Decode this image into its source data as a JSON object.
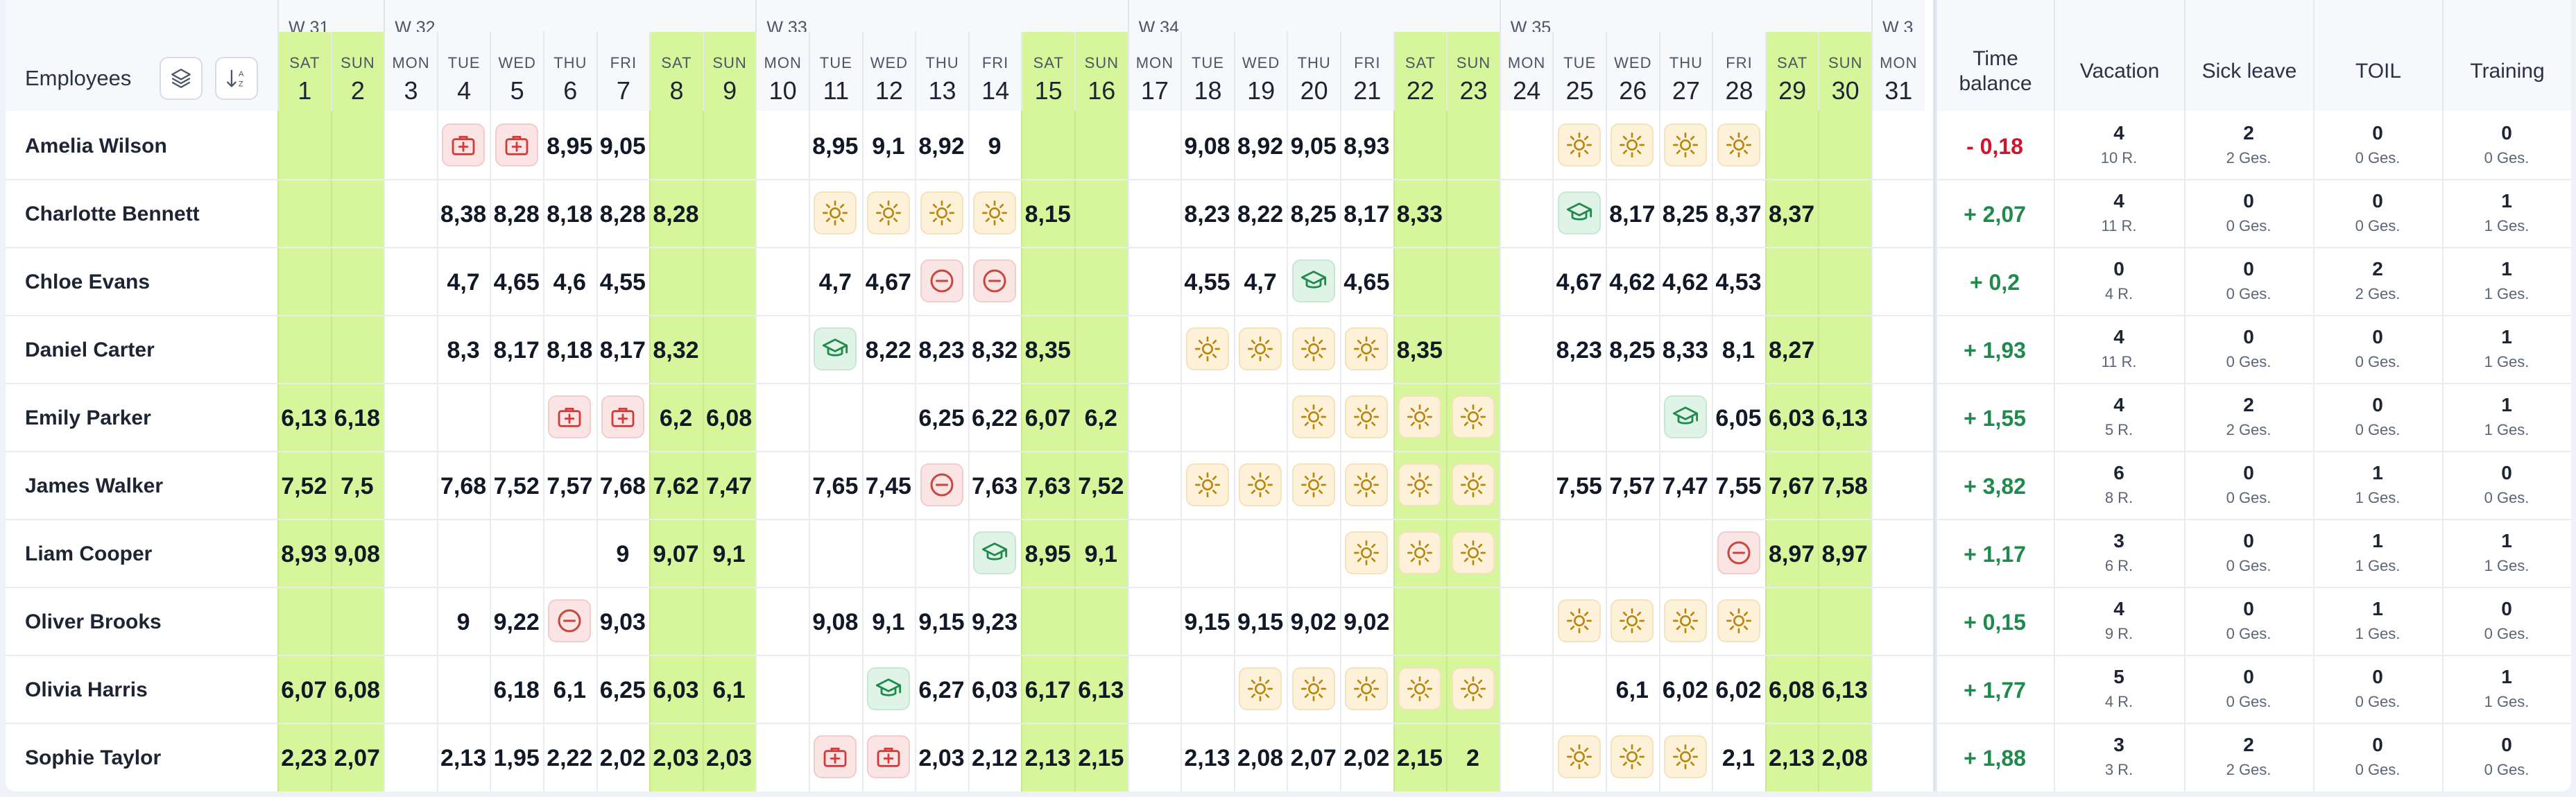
{
  "colors": {
    "weekend": "#d7f59a",
    "vacation": "#b8860b",
    "sick": "#d33b3b",
    "toil": "#c8463c",
    "training": "#1f8a4c",
    "positive": "#1f8a4c",
    "negative": "#d0142c"
  },
  "header": {
    "employees_label": "Employees",
    "layers_button": "layers-icon",
    "sort_button": "sort-icon",
    "weeks": [
      "W 31",
      "W 32",
      "W 33",
      "W 34",
      "W 35",
      "W 3"
    ],
    "time_balance": "Time balance",
    "vacation": "Vacation",
    "sick_leave": "Sick leave",
    "toil": "TOIL",
    "training": "Training"
  },
  "days": [
    {
      "dn": "SAT",
      "dd": "1",
      "we": true
    },
    {
      "dn": "SUN",
      "dd": "2",
      "we": true
    },
    {
      "dn": "MON",
      "dd": "3",
      "we": false
    },
    {
      "dn": "TUE",
      "dd": "4",
      "we": false
    },
    {
      "dn": "WED",
      "dd": "5",
      "we": false
    },
    {
      "dn": "THU",
      "dd": "6",
      "we": false
    },
    {
      "dn": "FRI",
      "dd": "7",
      "we": false
    },
    {
      "dn": "SAT",
      "dd": "8",
      "we": true
    },
    {
      "dn": "SUN",
      "dd": "9",
      "we": true
    },
    {
      "dn": "MON",
      "dd": "10",
      "we": false
    },
    {
      "dn": "TUE",
      "dd": "11",
      "we": false
    },
    {
      "dn": "WED",
      "dd": "12",
      "we": false
    },
    {
      "dn": "THU",
      "dd": "13",
      "we": false
    },
    {
      "dn": "FRI",
      "dd": "14",
      "we": false
    },
    {
      "dn": "SAT",
      "dd": "15",
      "we": true
    },
    {
      "dn": "SUN",
      "dd": "16",
      "we": true
    },
    {
      "dn": "MON",
      "dd": "17",
      "we": false
    },
    {
      "dn": "TUE",
      "dd": "18",
      "we": false
    },
    {
      "dn": "WED",
      "dd": "19",
      "we": false
    },
    {
      "dn": "THU",
      "dd": "20",
      "we": false
    },
    {
      "dn": "FRI",
      "dd": "21",
      "we": false
    },
    {
      "dn": "SAT",
      "dd": "22",
      "we": true
    },
    {
      "dn": "SUN",
      "dd": "23",
      "we": true
    },
    {
      "dn": "MON",
      "dd": "24",
      "we": false
    },
    {
      "dn": "TUE",
      "dd": "25",
      "we": false
    },
    {
      "dn": "WED",
      "dd": "26",
      "we": false
    },
    {
      "dn": "THU",
      "dd": "27",
      "we": false
    },
    {
      "dn": "FRI",
      "dd": "28",
      "we": false
    },
    {
      "dn": "SAT",
      "dd": "29",
      "we": true
    },
    {
      "dn": "SUN",
      "dd": "30",
      "we": true
    },
    {
      "dn": "MON",
      "dd": "31",
      "we": false
    }
  ],
  "employees": [
    {
      "name": "Amelia Wilson",
      "cells": [
        "",
        "",
        "",
        "S",
        "S",
        "8,95",
        "9,05",
        "",
        "",
        "",
        "8,95",
        "9,1",
        "8,92",
        "9",
        "",
        "",
        "",
        "9,08",
        "8,92",
        "9,05",
        "8,93",
        "",
        "",
        "",
        "V",
        "V",
        "V",
        "V",
        "",
        "",
        ""
      ],
      "balance": "- 0,18",
      "vac": [
        "4",
        "10 R."
      ],
      "sick": [
        "2",
        "2 Ges."
      ],
      "toil": [
        "0",
        "0 Ges."
      ],
      "trn": [
        "0",
        "0 Ges."
      ]
    },
    {
      "name": "Charlotte Bennett",
      "cells": [
        "",
        "",
        "",
        "8,38",
        "8,28",
        "8,18",
        "8,28",
        "8,28",
        "",
        "",
        "V",
        "V",
        "V",
        "V",
        "8,15",
        "",
        "",
        "8,23",
        "8,22",
        "8,25",
        "8,17",
        "8,33",
        "",
        "",
        "T",
        "8,17",
        "8,25",
        "8,37",
        "8,37",
        "",
        ""
      ],
      "balance": "+ 2,07",
      "vac": [
        "4",
        "11 R."
      ],
      "sick": [
        "0",
        "0 Ges."
      ],
      "toil": [
        "0",
        "0 Ges."
      ],
      "trn": [
        "1",
        "1 Ges."
      ]
    },
    {
      "name": "Chloe Evans",
      "cells": [
        "",
        "",
        "",
        "4,7",
        "4,65",
        "4,6",
        "4,55",
        "",
        "",
        "",
        "4,7",
        "4,67",
        "O",
        "O",
        "",
        "",
        "",
        "4,55",
        "4,7",
        "T",
        "4,65",
        "",
        "",
        "",
        "4,67",
        "4,62",
        "4,62",
        "4,53",
        "",
        "",
        ""
      ],
      "balance": "+ 0,2",
      "vac": [
        "0",
        "4 R."
      ],
      "sick": [
        "0",
        "0 Ges."
      ],
      "toil": [
        "2",
        "2 Ges."
      ],
      "trn": [
        "1",
        "1 Ges."
      ]
    },
    {
      "name": "Daniel Carter",
      "cells": [
        "",
        "",
        "",
        "8,3",
        "8,17",
        "8,18",
        "8,17",
        "8,32",
        "",
        "",
        "T",
        "8,22",
        "8,23",
        "8,32",
        "8,35",
        "",
        "",
        "V",
        "V",
        "V",
        "V",
        "8,35",
        "",
        "",
        "8,23",
        "8,25",
        "8,33",
        "8,1",
        "8,27",
        "",
        ""
      ],
      "balance": "+ 1,93",
      "vac": [
        "4",
        "11 R."
      ],
      "sick": [
        "0",
        "0 Ges."
      ],
      "toil": [
        "0",
        "0 Ges."
      ],
      "trn": [
        "1",
        "1 Ges."
      ]
    },
    {
      "name": "Emily Parker",
      "cells": [
        "6,13",
        "6,18",
        "",
        "",
        "",
        "S",
        "S",
        "6,2",
        "6,08",
        "",
        "",
        "",
        "6,25",
        "6,22",
        "6,07",
        "6,2",
        "",
        "",
        "",
        "V",
        "V",
        "V",
        "V",
        "",
        "",
        "",
        "T",
        "6,05",
        "6,03",
        "6,13",
        ""
      ],
      "balance": "+ 1,55",
      "vac": [
        "4",
        "5 R."
      ],
      "sick": [
        "2",
        "2 Ges."
      ],
      "toil": [
        "0",
        "0 Ges."
      ],
      "trn": [
        "1",
        "1 Ges."
      ]
    },
    {
      "name": "James Walker",
      "cells": [
        "7,52",
        "7,5",
        "",
        "7,68",
        "7,52",
        "7,57",
        "7,68",
        "7,62",
        "7,47",
        "",
        "7,65",
        "7,45",
        "O",
        "7,63",
        "7,63",
        "7,52",
        "",
        "V",
        "V",
        "V",
        "V",
        "V",
        "V",
        "",
        "7,55",
        "7,57",
        "7,47",
        "7,55",
        "7,67",
        "7,58",
        ""
      ],
      "balance": "+ 3,82",
      "vac": [
        "6",
        "8 R."
      ],
      "sick": [
        "0",
        "0 Ges."
      ],
      "toil": [
        "1",
        "1 Ges."
      ],
      "trn": [
        "0",
        "0 Ges."
      ]
    },
    {
      "name": "Liam Cooper",
      "cells": [
        "8,93",
        "9,08",
        "",
        "",
        "",
        "",
        "9",
        "9,07",
        "9,1",
        "",
        "",
        "",
        "",
        "T",
        "8,95",
        "9,1",
        "",
        "",
        "",
        "",
        "V",
        "V",
        "V",
        "",
        "",
        "",
        "",
        "O",
        "8,97",
        "8,97",
        ""
      ],
      "balance": "+ 1,17",
      "vac": [
        "3",
        "6 R."
      ],
      "sick": [
        "0",
        "0 Ges."
      ],
      "toil": [
        "1",
        "1 Ges."
      ],
      "trn": [
        "1",
        "1 Ges."
      ]
    },
    {
      "name": "Oliver Brooks",
      "cells": [
        "",
        "",
        "",
        "9",
        "9,22",
        "O",
        "9,03",
        "",
        "",
        "",
        "9,08",
        "9,1",
        "9,15",
        "9,23",
        "",
        "",
        "",
        "9,15",
        "9,15",
        "9,02",
        "9,02",
        "",
        "",
        "",
        "V",
        "V",
        "V",
        "V",
        "",
        "",
        ""
      ],
      "balance": "+ 0,15",
      "vac": [
        "4",
        "9 R."
      ],
      "sick": [
        "0",
        "0 Ges."
      ],
      "toil": [
        "1",
        "1 Ges."
      ],
      "trn": [
        "0",
        "0 Ges."
      ]
    },
    {
      "name": "Olivia Harris",
      "cells": [
        "6,07",
        "6,08",
        "",
        "",
        "6,18",
        "6,1",
        "6,25",
        "6,03",
        "6,1",
        "",
        "",
        "T",
        "6,27",
        "6,03",
        "6,17",
        "6,13",
        "",
        "",
        "V",
        "V",
        "V",
        "V",
        "V",
        "",
        "",
        "6,1",
        "6,02",
        "6,02",
        "6,08",
        "6,13",
        ""
      ],
      "balance": "+ 1,77",
      "vac": [
        "5",
        "4 R."
      ],
      "sick": [
        "0",
        "0 Ges."
      ],
      "toil": [
        "0",
        "0 Ges."
      ],
      "trn": [
        "1",
        "1 Ges."
      ]
    },
    {
      "name": "Sophie Taylor",
      "cells": [
        "2,23",
        "2,07",
        "",
        "2,13",
        "1,95",
        "2,22",
        "2,02",
        "2,03",
        "2,03",
        "",
        "S",
        "S",
        "2,03",
        "2,12",
        "2,13",
        "2,15",
        "",
        "2,13",
        "2,08",
        "2,07",
        "2,02",
        "2,15",
        "2",
        "",
        "V",
        "V",
        "V",
        "2,1",
        "2,13",
        "2,08",
        ""
      ],
      "balance": "+ 1,88",
      "vac": [
        "3",
        "3 R."
      ],
      "sick": [
        "2",
        "2 Ges."
      ],
      "toil": [
        "0",
        "0 Ges."
      ],
      "trn": [
        "0",
        "0 Ges."
      ]
    }
  ]
}
